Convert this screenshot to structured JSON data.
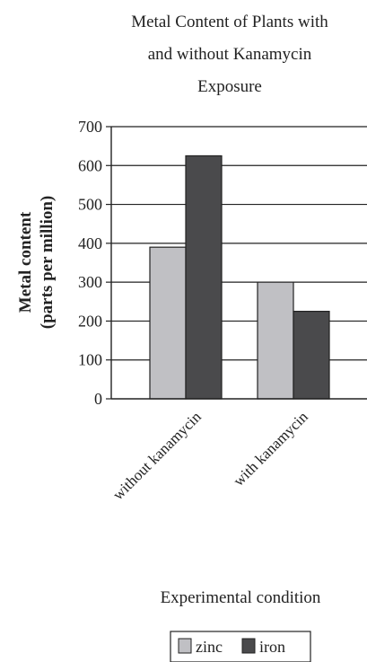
{
  "chart_data": {
    "type": "bar",
    "title_lines": [
      "Metal Content of Plants with",
      "and without Kanamycin",
      "Exposure"
    ],
    "ylabel_lines": [
      "Metal content",
      "(parts per million)"
    ],
    "xlabel": "Experimental condition",
    "categories": [
      "without kanamycin",
      "with kanamycin"
    ],
    "series": [
      {
        "name": "zinc",
        "values": [
          390,
          300
        ],
        "color": "#c0c0c4"
      },
      {
        "name": "iron",
        "values": [
          625,
          225
        ],
        "color": "#4a4a4c"
      }
    ],
    "ylim": [
      0,
      700
    ],
    "yticks": [
      "0",
      "100",
      "200",
      "300",
      "400",
      "500",
      "600",
      "700"
    ],
    "grid": true,
    "legend_position": "bottom"
  }
}
